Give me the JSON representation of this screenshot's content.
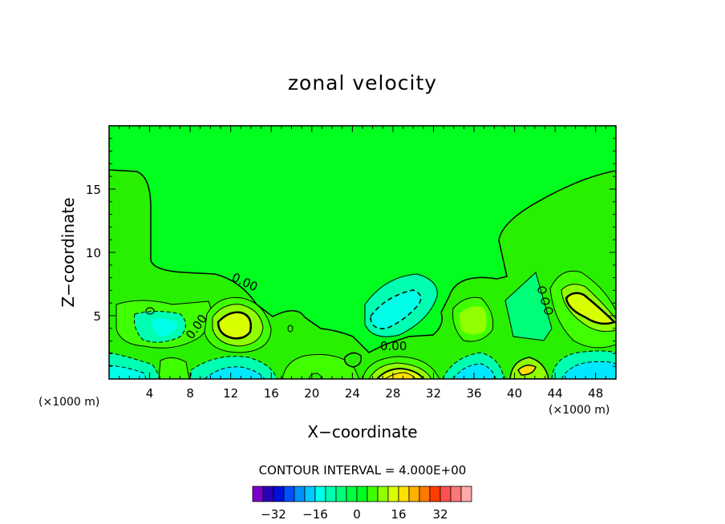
{
  "chart_data": {
    "type": "contour",
    "title": "zonal velocity",
    "xlabel": "X−coordinate",
    "ylabel": "Z−coordinate",
    "x_unit_left": "(×1000 m)",
    "x_unit_right": "(×1000 m)",
    "xlim": [
      0,
      50
    ],
    "ylim": [
      0,
      20
    ],
    "x_ticks": [
      "4",
      "8",
      "12",
      "16",
      "20",
      "24",
      "28",
      "32",
      "36",
      "40",
      "44",
      "48"
    ],
    "x_tick_values": [
      4,
      8,
      12,
      16,
      20,
      24,
      28,
      32,
      36,
      40,
      44,
      48
    ],
    "y_ticks": [
      "5",
      "10",
      "15"
    ],
    "y_tick_values": [
      5,
      10,
      15
    ],
    "contour_label": "0.00",
    "contour_interval_text": "CONTOUR INTERVAL = 4.000E+00",
    "background_color": "#00ff1e",
    "colorbar": {
      "colors": [
        "#7b00c8",
        "#2a00b4",
        "#0010d8",
        "#0050ff",
        "#0090ff",
        "#00c8ff",
        "#00ffe8",
        "#00ffb0",
        "#00ff78",
        "#00ff40",
        "#00ff1e",
        "#40ff00",
        "#90ff00",
        "#d8ff00",
        "#ffe000",
        "#ffb000",
        "#ff7800",
        "#ff3c00",
        "#ff5050",
        "#ff7878",
        "#ffaaaa"
      ],
      "tick_labels": [
        "−32",
        "−16",
        "0",
        "16",
        "32"
      ],
      "tick_values": [
        -32,
        -16,
        0,
        16,
        32
      ]
    },
    "features": [
      {
        "kind": "positive",
        "x": 12,
        "z": 4.2,
        "peak": 10,
        "note": "yellow core"
      },
      {
        "kind": "positive",
        "x": 28.5,
        "z": 0.3,
        "peak": 18
      },
      {
        "kind": "positive",
        "x": 46,
        "z": 5.5,
        "peak": 10
      },
      {
        "kind": "positive",
        "x": 41,
        "z": 0.7,
        "peak": 8
      },
      {
        "kind": "negative",
        "x": 28.5,
        "z": 5.2,
        "peak": -10
      },
      {
        "kind": "negative",
        "x": 7,
        "z": 4.2,
        "peak": -8
      },
      {
        "kind": "negative",
        "x": 40.5,
        "z": 5.0,
        "peak": -6
      },
      {
        "kind": "negative",
        "x": 12,
        "z": 0.2,
        "peak": -14
      },
      {
        "kind": "negative",
        "x": 35.5,
        "z": 0.4,
        "peak": -12
      },
      {
        "kind": "negative",
        "x": 47,
        "z": 0.3,
        "peak": -14
      },
      {
        "kind": "negative",
        "x": 1.5,
        "z": 0.6,
        "peak": -12
      }
    ]
  }
}
